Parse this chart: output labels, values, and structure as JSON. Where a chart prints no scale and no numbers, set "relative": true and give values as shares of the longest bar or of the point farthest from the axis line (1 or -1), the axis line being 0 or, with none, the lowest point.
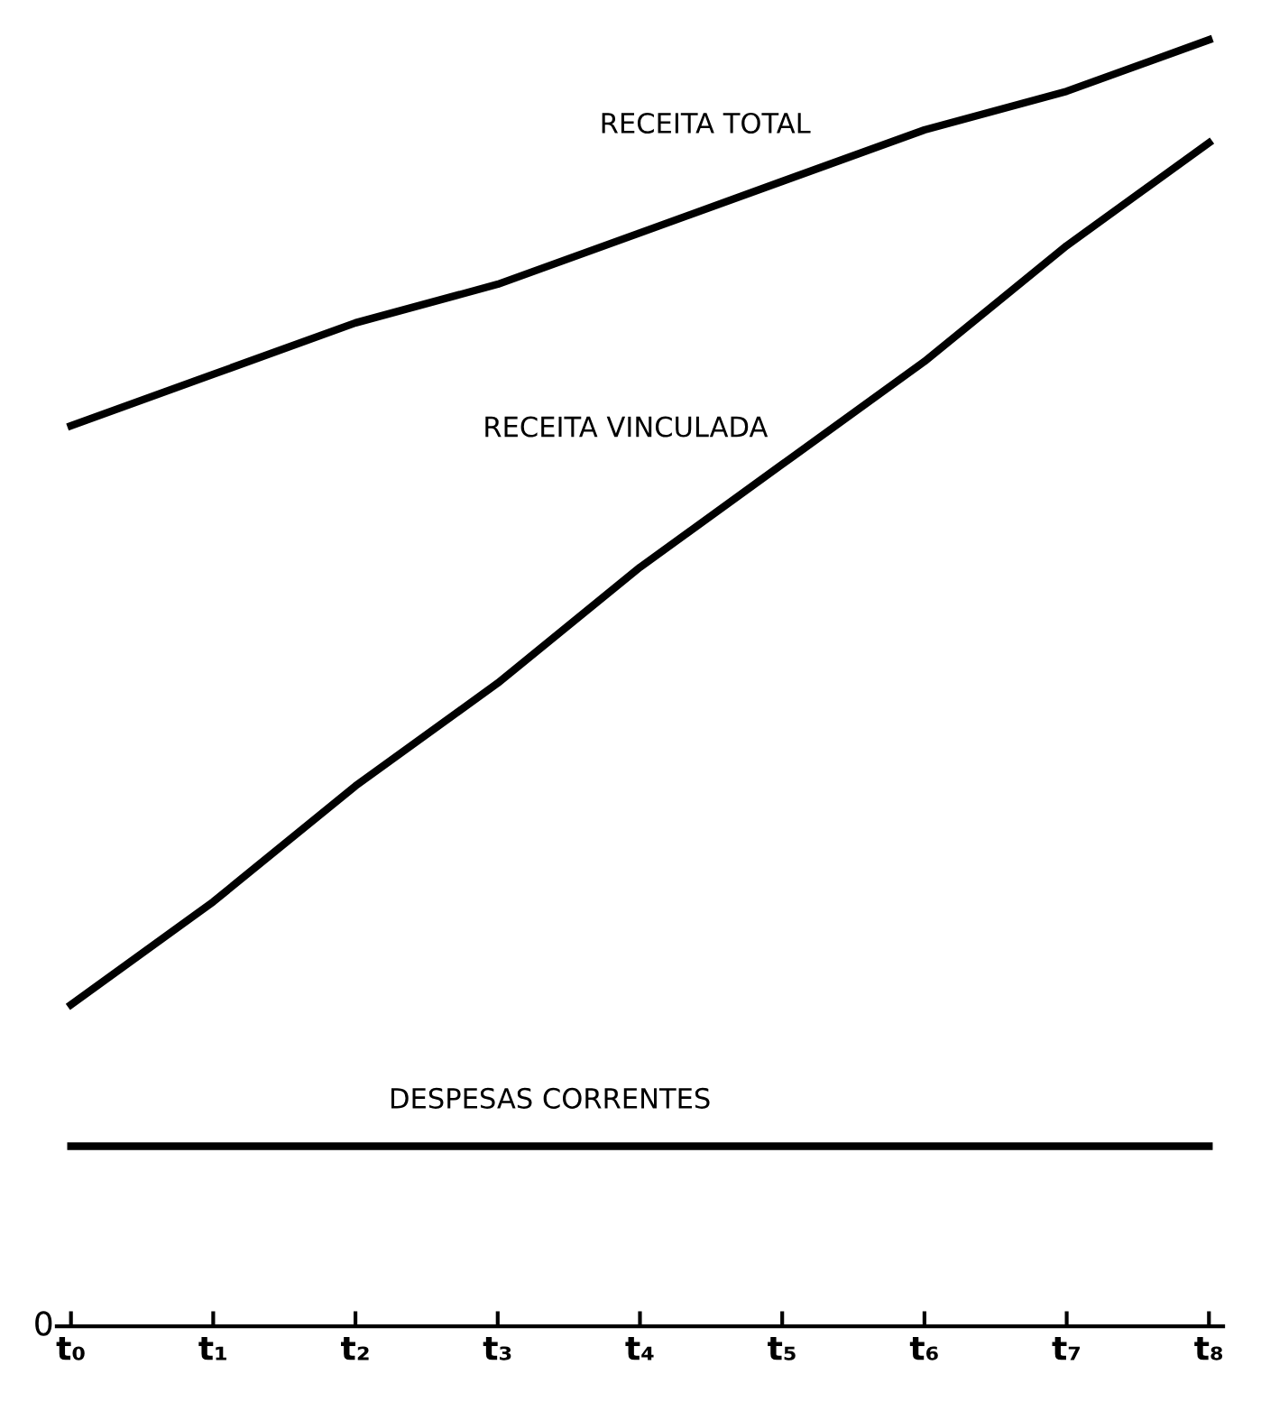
{
  "chart_data": {
    "type": "line",
    "relative": true,
    "categories": [
      "t₀",
      "t₁",
      "t₂",
      "t₃",
      "t₄",
      "t₅",
      "t₆",
      "t₇",
      "t₈"
    ],
    "series": [
      {
        "name": "RECEITA TOTAL",
        "color": "#000000",
        "values": [
          0.7,
          0.74,
          0.78,
          0.81,
          0.85,
          0.89,
          0.93,
          0.96,
          1.0
        ]
      },
      {
        "name": "RECEITA VINCULADA",
        "color": "#000000",
        "values": [
          0.25,
          0.33,
          0.42,
          0.5,
          0.59,
          0.67,
          0.75,
          0.84,
          0.92
        ]
      },
      {
        "name": "DESPESAS CORRENTES",
        "color": "#000000",
        "values": [
          0.14,
          0.14,
          0.14,
          0.14,
          0.14,
          0.14,
          0.14,
          0.14,
          0.14
        ]
      }
    ],
    "annotations": [
      "0"
    ],
    "grid": false,
    "legend": false,
    "marker": "none",
    "line_style": "solid"
  }
}
